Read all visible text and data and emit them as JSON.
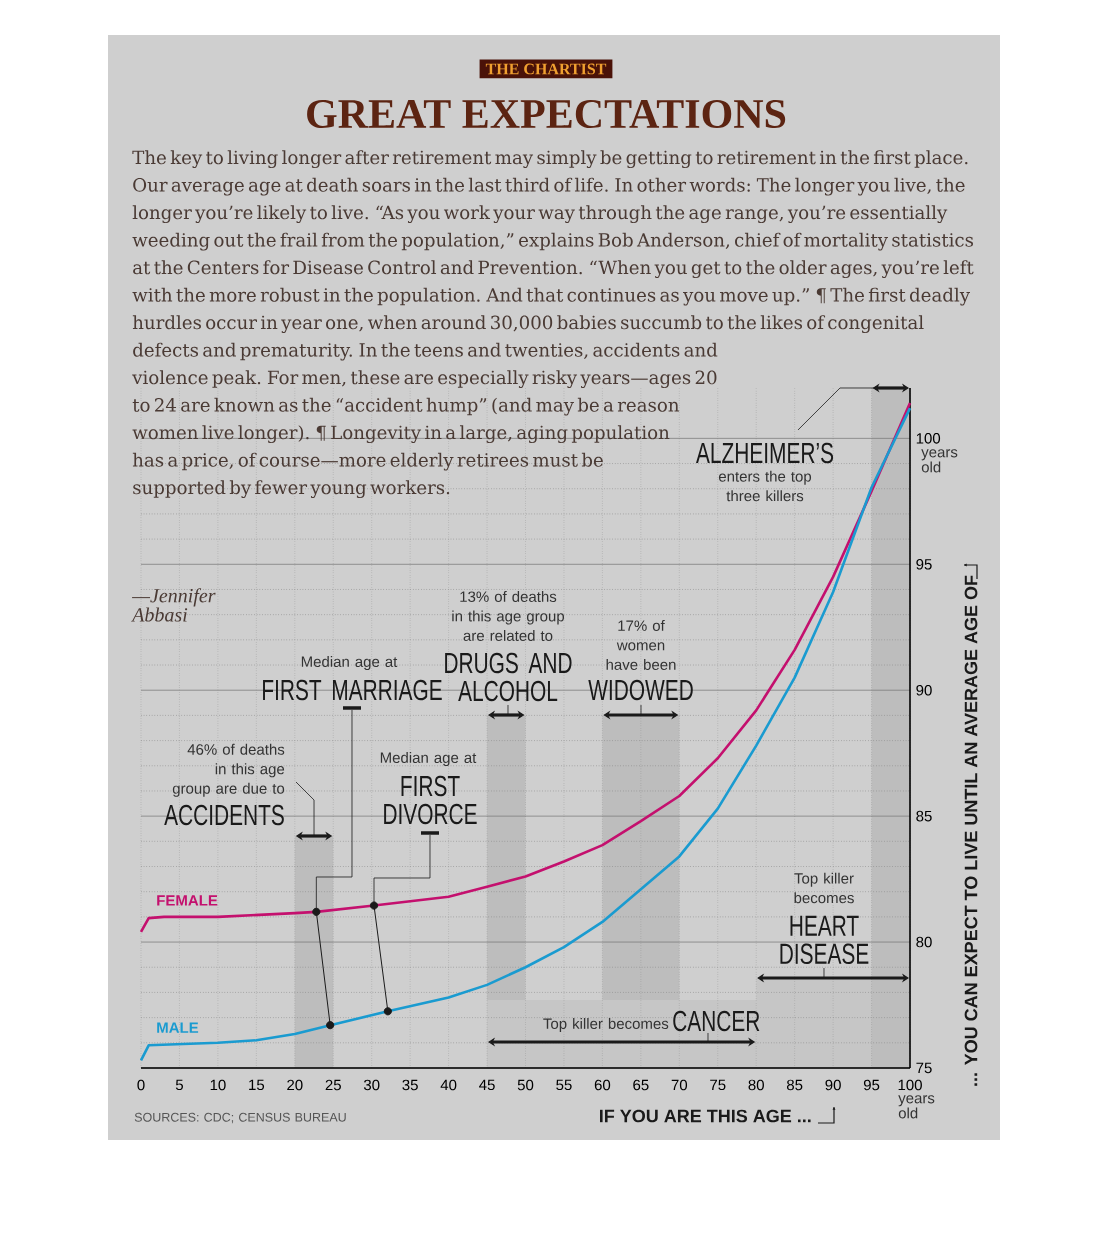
{
  "chart_data": {
    "type": "line",
    "title": "GREAT EXPECTATIONS",
    "subtitle": "THE CHARTIST",
    "xlabel": "IF YOU ARE THIS AGE ...",
    "ylabel": "... YOU CAN EXPECT TO LIVE UNTIL AN AVERAGE AGE OF",
    "xlim": [
      0,
      100
    ],
    "ylim": [
      75,
      102
    ],
    "xticks": [
      0,
      5,
      10,
      15,
      20,
      25,
      30,
      35,
      40,
      45,
      50,
      55,
      60,
      65,
      70,
      75,
      80,
      85,
      90,
      95,
      100
    ],
    "yticks": [
      75,
      80,
      85,
      90,
      95,
      100
    ],
    "grid": true,
    "marker": "none",
    "line_style": "solid",
    "series": [
      {
        "name": "FEMALE",
        "color": "#c4106e",
        "x": [
          0,
          1,
          3,
          10,
          20,
          22.8,
          30.3,
          40,
          45,
          50,
          55,
          60,
          65,
          70,
          75,
          80,
          85,
          90,
          95,
          100
        ],
        "values": [
          80.4,
          80.95,
          81.0,
          81.0,
          81.15,
          81.2,
          81.45,
          81.8,
          82.2,
          82.6,
          83.2,
          83.85,
          84.8,
          85.8,
          87.3,
          89.2,
          91.6,
          94.5,
          97.9,
          101.4
        ]
      },
      {
        "name": "MALE",
        "color": "#1a9bd0",
        "x": [
          0,
          1,
          10,
          15,
          20,
          24.6,
          32.1,
          40,
          45,
          50,
          55,
          60,
          65,
          70,
          75,
          80,
          85,
          90,
          95,
          100
        ],
        "values": [
          75.3,
          75.9,
          76.0,
          76.1,
          76.35,
          76.7,
          77.25,
          77.8,
          78.3,
          79.0,
          79.8,
          80.8,
          82.1,
          83.4,
          85.3,
          87.8,
          90.5,
          93.9,
          98.05,
          101.2
        ]
      },
      {
        "type": "line",
        "marker": "circle",
        "color": "#1a1a1a",
        "x": [
          22.8,
          24.6
        ],
        "values": [
          81.2,
          76.7
        ]
      },
      {
        "type": "line",
        "marker": "circle",
        "color": "#1a1a1a",
        "x": [
          30.3,
          32.1
        ],
        "values": [
          81.45,
          77.25
        ]
      }
    ],
    "bands": [
      {
        "axis": "x",
        "from": 20,
        "to": 25,
        "label": "ACCIDENTS",
        "color": "#bdbdbd"
      },
      {
        "axis": "x",
        "from": 45,
        "to": 50,
        "label": "DRUGS AND ALCOHOL",
        "color": "#bdbdbd"
      },
      {
        "axis": "x",
        "from": 60,
        "to": 70,
        "label": "WIDOWED",
        "color": "#bdbdbd"
      },
      {
        "axis": "x",
        "from": 45,
        "to": 80,
        "label": "CANCER",
        "color": "#c6c6c6"
      },
      {
        "axis": "x",
        "from": 80,
        "to": 100,
        "label": "HEART DISEASE",
        "color": "#c6c6c6"
      },
      {
        "axis": "x",
        "from": 95,
        "to": 100,
        "label": "ALZHEIMER’S",
        "color": "#bdbdbd"
      }
    ],
    "annotations": [
      "The key to living longer after retirement may simply be getting to retirement in the first place. Our average age at death soars in the last third of life. In other words: The longer you live, the longer you’re likely to live. “As you work your way through the age range, you’re essentially weeding out the frail from the population,” explains Bob Anderson, chief of mortality statistics at the Centers for Disease Control and Prevention. “When you get to the older ages, you’re left with the more robust in the population. And that continues as you move up.” ¶ The first deadly hurdles occur in year one, when around 30,000 babies succumb to the likes of congenital defects and prematurity. In the teens and twenties, accidents and violence peak. For men, these are especially risky years—ages 20 to 24 are known as the “accident hump” (and may be a reason women live longer). ¶ Longevity in a large, aging population has a price, of course—more elderly retirees must be supported by fewer young workers.",
      "—Jennifer Abbasi",
      {
        "text": "46% of deaths in this age group are due to",
        "x": 22.5,
        "y": 84.2
      },
      "Median age at",
      "Median age at",
      "13% of deaths in this age group are related to",
      "17% of women have been",
      "enters the top three killers",
      "Top killer becomes",
      "Top killer becomes",
      "years old",
      "years old",
      "SOURCES: CDC; CENSUS BUREAU",
      {
        "text": "FIRST MARRIAGE",
        "x": 22.8,
        "y": 81.2
      },
      {
        "text": "FIRST DIVORCE",
        "x": 30.3,
        "y": 81.45
      }
    ]
  }
}
